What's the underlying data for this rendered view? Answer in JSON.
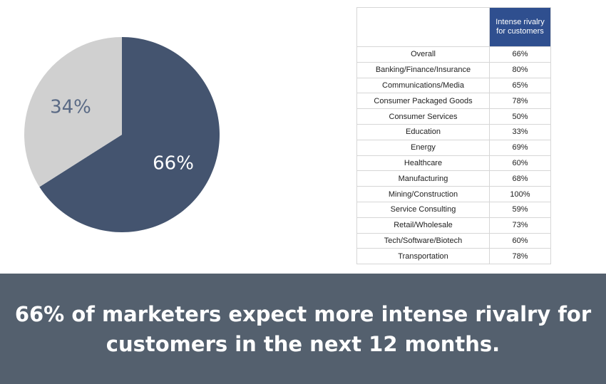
{
  "colors": {
    "pie_main": "#44546f",
    "pie_rest": "#d0d0d0",
    "label_main": "#ffffff",
    "label_rest": "#5a6a85",
    "table_header": "#2f4f8f",
    "band": "#54606e"
  },
  "chart_data": [
    {
      "type": "pie",
      "slices": [
        {
          "label": "66%",
          "value": 66
        },
        {
          "label": "34%",
          "value": 34
        }
      ]
    },
    {
      "type": "table",
      "column_header": "Intense rivalry for customers",
      "rows": [
        {
          "industry": "Overall",
          "value": "66%"
        },
        {
          "industry": "Banking/Finance/Insurance",
          "value": "80%"
        },
        {
          "industry": "Communications/Media",
          "value": "65%"
        },
        {
          "industry": "Consumer Packaged Goods",
          "value": "78%"
        },
        {
          "industry": "Consumer Services",
          "value": "50%"
        },
        {
          "industry": "Education",
          "value": "33%"
        },
        {
          "industry": "Energy",
          "value": "69%"
        },
        {
          "industry": "Healthcare",
          "value": "60%"
        },
        {
          "industry": "Manufacturing",
          "value": "68%"
        },
        {
          "industry": "Mining/Construction",
          "value": "100%"
        },
        {
          "industry": "Service Consulting",
          "value": "59%"
        },
        {
          "industry": "Retail/Wholesale",
          "value": "73%"
        },
        {
          "industry": "Tech/Software/Biotech",
          "value": "60%"
        },
        {
          "industry": "Transportation",
          "value": "78%"
        }
      ]
    }
  ],
  "caption": "66% of marketers expect more intense rivalry for customers in the next 12 months."
}
